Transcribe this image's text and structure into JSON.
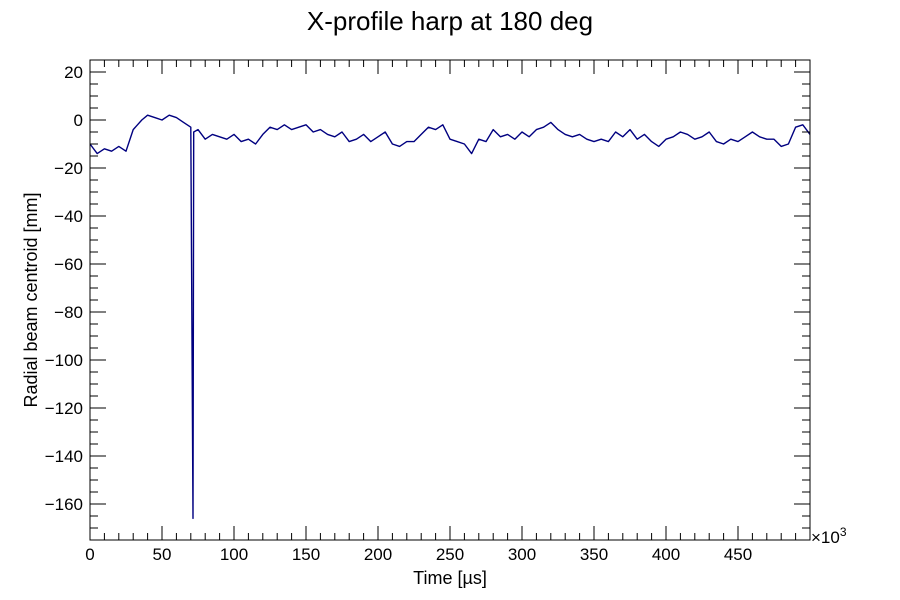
{
  "chart_data": {
    "type": "line",
    "title": "X-profile harp at 180 deg",
    "xlabel": "Time [µs]",
    "ylabel": "Radial beam centroid [mm]",
    "x_exponent_label": "×10",
    "x_exponent_power": "3",
    "xlim": [
      0,
      500000
    ],
    "ylim": [
      -175,
      25
    ],
    "x_tick_values": [
      0,
      50,
      100,
      150,
      200,
      250,
      300,
      350,
      400,
      450
    ],
    "y_tick_values": [
      20,
      0,
      -20,
      -40,
      -60,
      -80,
      -100,
      -120,
      -140,
      -160
    ],
    "x_tick_labels": [
      "0",
      "50",
      "100",
      "150",
      "200",
      "250",
      "300",
      "350",
      "400",
      "450"
    ],
    "y_tick_labels": [
      "20",
      "0",
      "−20",
      "−40",
      "−60",
      "−80",
      "−100",
      "−120",
      "−140",
      "−160"
    ],
    "grid": false,
    "line_color": "#000080",
    "series": [
      {
        "x": [
          0,
          5000,
          10000,
          15000,
          20000,
          25000,
          30000,
          33000,
          36000,
          40000,
          45000,
          50000,
          55000,
          60000,
          65000,
          70000,
          71500,
          72000,
          75000,
          80000,
          85000,
          90000,
          95000,
          100000,
          105000,
          110000,
          115000,
          120000,
          125000,
          130000,
          135000,
          140000,
          145000,
          150000,
          155000,
          160000,
          165000,
          170000,
          175000,
          180000,
          185000,
          190000,
          195000,
          200000,
          205000,
          210000,
          215000,
          220000,
          225000,
          230000,
          235000,
          240000,
          245000,
          250000,
          255000,
          260000,
          265000,
          270000,
          275000,
          280000,
          285000,
          290000,
          295000,
          300000,
          305000,
          310000,
          315000,
          320000,
          325000,
          330000,
          335000,
          340000,
          345000,
          350000,
          355000,
          360000,
          365000,
          370000,
          375000,
          380000,
          385000,
          390000,
          395000,
          400000,
          405000,
          410000,
          415000,
          420000,
          425000,
          430000,
          435000,
          440000,
          445000,
          450000,
          455000,
          460000,
          465000,
          470000,
          475000,
          480000,
          485000,
          490000,
          495000,
          500000
        ],
        "y": [
          -10,
          -14,
          -12,
          -13,
          -11,
          -13,
          -4,
          -2,
          0,
          2,
          1,
          0,
          2,
          1,
          -1,
          -3,
          -166,
          -5,
          -4,
          -8,
          -6,
          -7,
          -8,
          -6,
          -9,
          -8,
          -10,
          -6,
          -3,
          -4,
          -2,
          -4,
          -3,
          -2,
          -5,
          -4,
          -6,
          -7,
          -5,
          -9,
          -8,
          -6,
          -9,
          -7,
          -5,
          -10,
          -11,
          -9,
          -9,
          -6,
          -3,
          -4,
          -2,
          -8,
          -9,
          -10,
          -14,
          -8,
          -9,
          -4,
          -7,
          -6,
          -8,
          -5,
          -7,
          -4,
          -3,
          -1,
          -4,
          -6,
          -7,
          -6,
          -8,
          -9,
          -8,
          -9,
          -5,
          -7,
          -4,
          -8,
          -6,
          -9,
          -11,
          -8,
          -7,
          -5,
          -6,
          -8,
          -7,
          -5,
          -9,
          -10,
          -8,
          -9,
          -7,
          -5,
          -7,
          -8,
          -8,
          -11,
          -10,
          -3,
          -2,
          -6
        ]
      }
    ]
  }
}
